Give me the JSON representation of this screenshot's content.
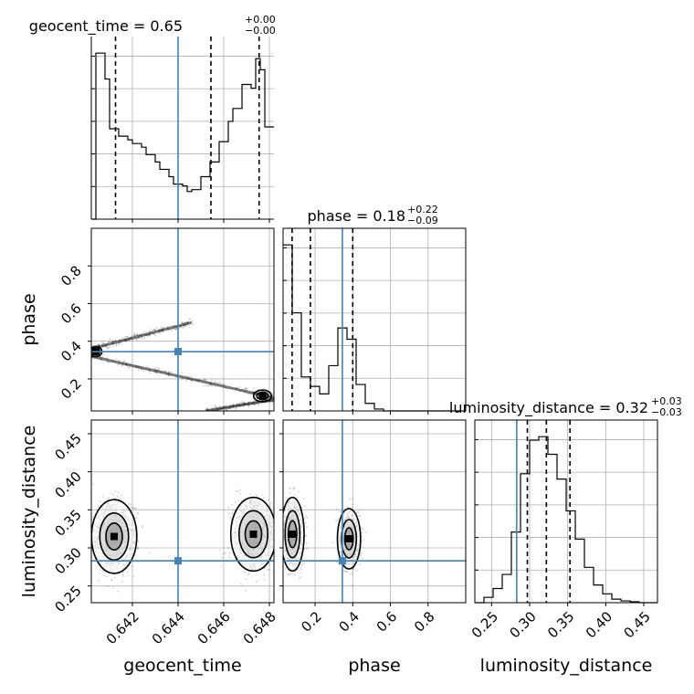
{
  "chart_data": {
    "type": "corner",
    "colors": {
      "truth": "#4682b4",
      "hist": "#000000",
      "grid": "#b0b0b0",
      "quantile": "#000000"
    },
    "truth": {
      "geocent_time": 0.644,
      "phase": 0.345,
      "luminosity_distance": 0.283
    },
    "axes": {
      "geocent_time": {
        "label": "geocent_time",
        "range": [
          0.6402,
          0.6482
        ],
        "ticks": [
          0.642,
          0.644,
          0.646,
          0.648
        ],
        "tick_labels": [
          "0.642",
          "0.644",
          "0.646",
          "0.648"
        ]
      },
      "phase": {
        "label": "phase",
        "range": [
          0.03,
          1.0
        ],
        "ticks": [
          0.2,
          0.4,
          0.6,
          0.8
        ],
        "tick_labels": [
          "0.2",
          "0.4",
          "0.6",
          "0.8"
        ]
      },
      "luminosity_distance": {
        "label": "luminosity_distance",
        "range": [
          0.228,
          0.468
        ],
        "ticks": [
          0.25,
          0.3,
          0.35,
          0.4,
          0.45
        ],
        "tick_labels": [
          "0.25",
          "0.30",
          "0.35",
          "0.40",
          "0.45"
        ]
      }
    },
    "titles": [
      {
        "param": "geocent_time",
        "name": "geocent_time",
        "median": "0.65",
        "plus": "+0.00",
        "minus": "−0.00"
      },
      {
        "param": "phase",
        "name": "phase",
        "median": "0.18",
        "plus": "+0.22",
        "minus": "−0.09"
      },
      {
        "param": "luminosity_distance",
        "name": "luminosity_distance",
        "median": "0.32",
        "plus": "+0.03",
        "minus": "−0.03"
      }
    ],
    "quantiles": {
      "geocent_time": [
        0.64126,
        0.64544,
        0.64755
      ],
      "phase": [
        0.078,
        0.175,
        0.4
      ],
      "luminosity_distance": [
        0.297,
        0.322,
        0.353
      ]
    },
    "histograms": {
      "geocent_time": {
        "edges": [
          0.6402,
          0.6404,
          0.6406,
          0.6408,
          0.641,
          0.6412,
          0.6414,
          0.6416,
          0.6418,
          0.642,
          0.6422,
          0.6424,
          0.6426,
          0.6428,
          0.643,
          0.6432,
          0.6434,
          0.6436,
          0.6438,
          0.644,
          0.6442,
          0.6444,
          0.6446,
          0.6448,
          0.645,
          0.6452,
          0.6454,
          0.6456,
          0.6458,
          0.646,
          0.6462,
          0.6464,
          0.6466,
          0.6468,
          0.647,
          0.6472,
          0.6474,
          0.6476,
          0.6478,
          0.648,
          0.6482
        ],
        "counts": [
          0,
          0.9,
          0.9,
          0.76,
          0.49,
          0.49,
          0.45,
          0.45,
          0.43,
          0.41,
          0.41,
          0.39,
          0.35,
          0.35,
          0.31,
          0.27,
          0.27,
          0.23,
          0.19,
          0.19,
          0.18,
          0.15,
          0.16,
          0.16,
          0.23,
          0.23,
          0.31,
          0.31,
          0.42,
          0.42,
          0.53,
          0.6,
          0.6,
          0.73,
          0.73,
          0.71,
          0.87,
          0.81,
          0.5,
          0.5
        ]
      },
      "phase": {
        "edges": [
          0.03,
          0.0785,
          0.127,
          0.1755,
          0.224,
          0.2725,
          0.321,
          0.3695,
          0.418,
          0.4665,
          0.515,
          0.5635,
          0.612,
          0.6605,
          0.709,
          0.7575,
          0.806,
          0.8545,
          0.903,
          0.9515,
          1.0
        ],
        "counts": [
          0.88,
          0.52,
          0.18,
          0.13,
          0.09,
          0.24,
          0.44,
          0.38,
          0.14,
          0.04,
          0.01,
          0,
          0,
          0,
          0,
          0,
          0,
          0,
          0,
          0
        ]
      },
      "luminosity_distance": {
        "edges": [
          0.228,
          0.24,
          0.252,
          0.264,
          0.276,
          0.288,
          0.3,
          0.312,
          0.324,
          0.336,
          0.348,
          0.36,
          0.372,
          0.384,
          0.396,
          0.408,
          0.42,
          0.432,
          0.444,
          0.456,
          0.468
        ],
        "counts": [
          0,
          0.03,
          0.08,
          0.16,
          0.4,
          0.73,
          0.92,
          0.94,
          0.84,
          0.7,
          0.52,
          0.36,
          0.2,
          0.1,
          0.05,
          0.02,
          0.01,
          0.005,
          0,
          0
        ]
      }
    }
  }
}
